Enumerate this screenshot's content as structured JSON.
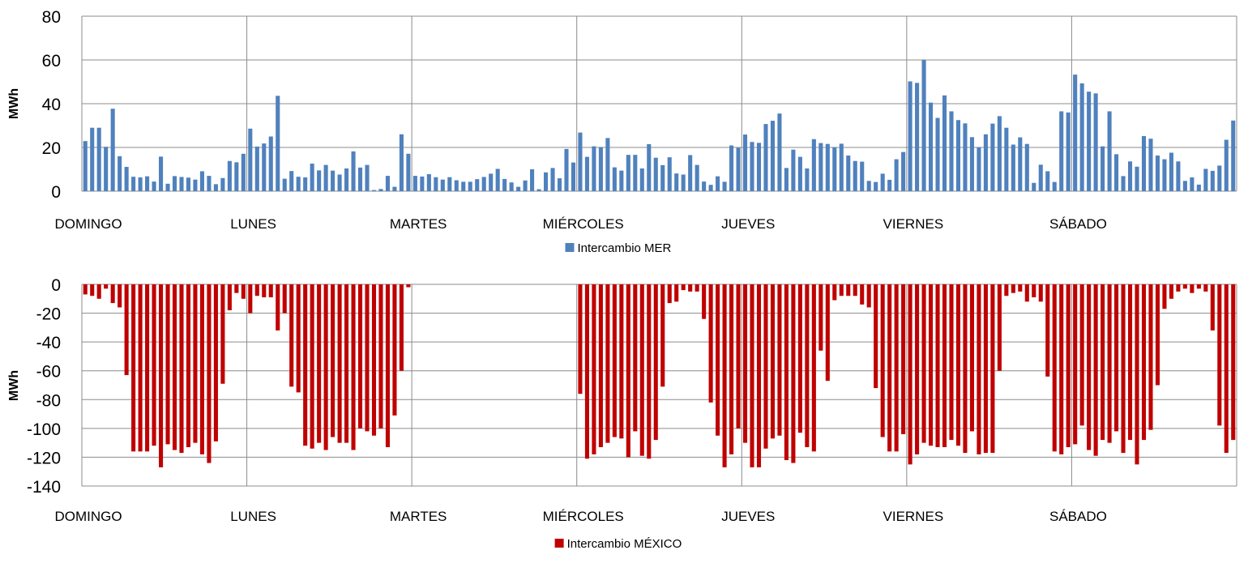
{
  "colors": {
    "mer": "#4F81BD",
    "mexico": "#C00000",
    "grid": "#8C8C8C",
    "axis": "#808080"
  },
  "chart_data": [
    {
      "type": "bar",
      "ylabel": "MWh",
      "ylim": [
        0,
        80
      ],
      "yticks": [
        0,
        20,
        40,
        60,
        80
      ],
      "grid": true,
      "legend": "bottom",
      "categories": [
        "DOMINGO",
        "LUNES",
        "MARTES",
        "MIÉRCOLES",
        "JUEVES",
        "VIERNES",
        "SÁBADO"
      ],
      "series": [
        {
          "name": "Intercambio MER",
          "color": "#4F81BD",
          "values": [
            [
              22.9,
              29.0,
              29.0,
              20.3,
              37.7,
              16.0,
              11.1,
              6.6,
              6.3,
              6.8,
              4.4,
              15.8,
              3.4,
              6.9,
              6.5,
              6.2,
              5.3,
              9.1,
              7.0,
              3.2,
              6.0,
              13.8,
              13.2,
              17.1
            ],
            [
              28.6,
              20.4,
              21.8,
              25.0,
              43.6,
              5.7,
              9.2,
              6.6,
              6.3,
              12.6,
              9.5,
              12.0,
              9.4,
              7.6,
              10.4,
              18.2,
              10.8,
              12.0,
              0.5,
              1.0,
              7.0,
              2.0,
              26.0,
              17.1
            ],
            [
              7.0,
              6.7,
              7.8,
              6.4,
              5.3,
              6.4,
              5.0,
              4.3,
              4.3,
              5.5,
              6.5,
              8.0,
              10.2,
              5.6,
              4.0,
              2.0,
              4.9,
              10.0,
              0.9,
              8.6,
              10.6,
              5.9,
              19.3,
              13.1
            ],
            [
              26.8,
              15.7,
              20.5,
              20.2,
              24.3,
              10.9,
              9.4,
              16.6,
              16.6,
              10.4,
              21.5,
              15.3,
              11.9,
              15.5,
              8.1,
              7.6,
              16.5,
              12.0,
              4.4,
              2.9,
              6.8,
              4.3,
              20.9,
              19.8
            ],
            [
              25.9,
              22.5,
              22.1,
              30.7,
              32.2,
              35.5,
              10.6,
              19.0,
              15.7,
              10.4,
              23.8,
              22.0,
              21.6,
              20.1,
              21.7,
              16.3,
              13.8,
              13.5,
              4.7,
              4.2,
              8.0,
              5.2,
              14.6,
              17.9
            ],
            [
              50.2,
              49.5,
              60.0,
              40.5,
              33.5,
              43.8,
              36.5,
              32.5,
              31.0,
              24.7,
              20.1,
              26.0,
              30.9,
              34.3,
              29.0,
              21.3,
              24.6,
              21.6,
              3.8,
              12.1,
              9.1,
              4.2,
              36.5,
              36.0
            ],
            [
              53.3,
              49.3,
              45.5,
              44.7,
              20.5,
              36.5,
              16.9,
              6.9,
              13.6,
              11.2,
              25.2,
              24.0,
              16.3,
              14.6,
              17.6,
              13.6,
              4.7,
              6.3,
              3.0,
              10.2,
              9.3,
              11.7,
              23.5,
              32.3
            ]
          ]
        }
      ]
    },
    {
      "type": "bar",
      "ylabel": "MWh",
      "ylim": [
        -140,
        0
      ],
      "yticks": [
        0,
        -20,
        -40,
        -60,
        -80,
        -100,
        -120,
        -140
      ],
      "grid": true,
      "legend": "bottom",
      "categories": [
        "DOMINGO",
        "LUNES",
        "MARTES",
        "MIÉRCOLES",
        "JUEVES",
        "VIERNES",
        "SÁBADO"
      ],
      "series": [
        {
          "name": "Intercambio MÉXICO",
          "color": "#C00000",
          "values": [
            [
              -7,
              -8,
              -10,
              -3,
              -13,
              -16,
              -63,
              -116,
              -116,
              -116,
              -112,
              -127,
              -111,
              -115,
              -117,
              -113,
              -110,
              -118,
              -124,
              -109,
              -69,
              -18,
              -6,
              -10
            ],
            [
              -20,
              -8,
              -9,
              -9,
              -32,
              -20,
              -71,
              -75,
              -112,
              -114,
              -110,
              -115,
              -106,
              -110,
              -110,
              -115,
              -100,
              -102,
              -105,
              -100,
              -113,
              -91,
              -60,
              -2
            ],
            [
              0,
              0,
              0,
              0,
              0,
              0,
              0,
              0,
              0,
              0,
              0,
              0,
              0,
              0,
              0,
              0,
              0,
              0,
              0,
              0,
              0,
              0,
              0,
              0
            ],
            [
              -76,
              -121,
              -118,
              -113,
              -110,
              -106,
              -107,
              -120,
              -102,
              -119,
              -121,
              -108,
              -71,
              -13,
              -12,
              -4,
              -5,
              -5,
              -24,
              -82,
              -105,
              -127,
              -118,
              -100
            ],
            [
              -110,
              -127,
              -127,
              -114,
              -107,
              -105,
              -122,
              -124,
              -103,
              -113,
              -116,
              -46,
              -67,
              -11,
              -8,
              -8,
              -8,
              -14,
              -16,
              -72,
              -106,
              -116,
              -116,
              -104
            ],
            [
              -125,
              -118,
              -110,
              -112,
              -113,
              -113,
              -108,
              -112,
              -117,
              -102,
              -118,
              -117,
              -117,
              -60,
              -8,
              -6,
              -5,
              -12,
              -9,
              -12,
              -64,
              -116,
              -118,
              -113
            ],
            [
              -111,
              -98,
              -115,
              -119,
              -108,
              -110,
              -102,
              -117,
              -108,
              -125,
              -108,
              -101,
              -70,
              -17,
              -10,
              -5,
              -3,
              -6,
              -3,
              -5,
              -32,
              -98,
              -117,
              -108
            ]
          ]
        }
      ]
    }
  ]
}
